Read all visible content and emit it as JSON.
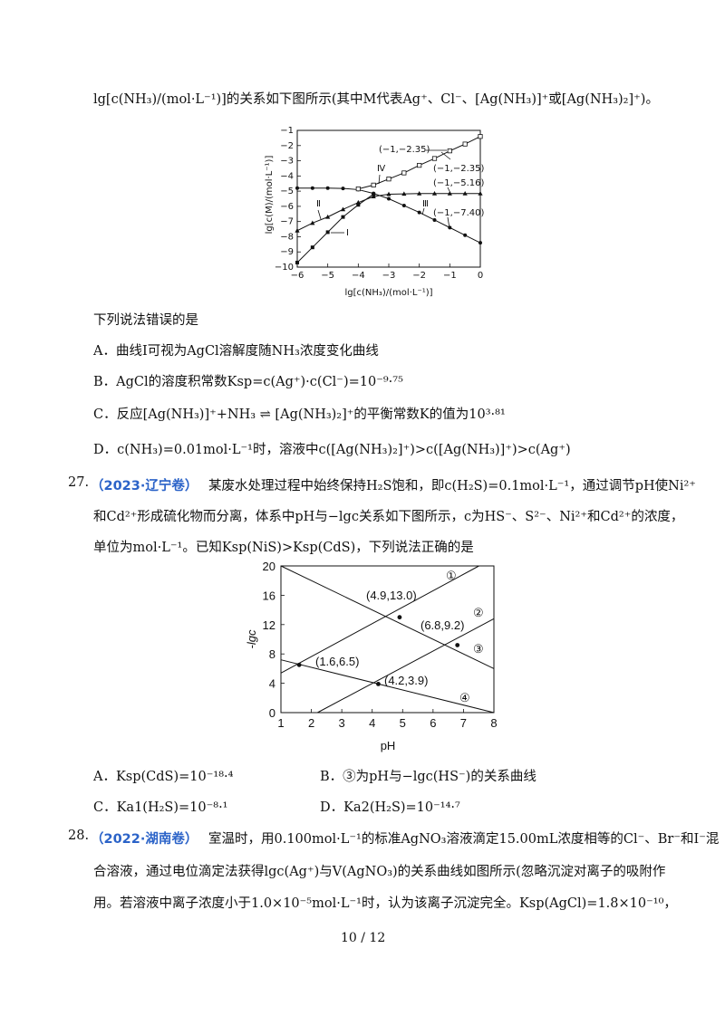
{
  "intro_line": "lg[c(NH₃)/(mol·L⁻¹)]的关系如下图所示(其中M代表Ag⁺、Cl⁻、[Ag(NH₃)]⁺或[Ag(NH₃)₂]⁺)。",
  "chart1": {
    "ylabel": "lg[c(M)/(mol·L⁻¹)]",
    "xlabel": "lg[c(NH₃)/(mol·L⁻¹)]",
    "x_ticks": [
      "−6",
      "−5",
      "−4",
      "−3",
      "−2",
      "−1",
      "0"
    ],
    "y_ticks": [
      "−1",
      "−2",
      "−3",
      "−4",
      "−5",
      "−6",
      "−7",
      "−8",
      "−9",
      "−10"
    ],
    "curve_labels": [
      "Ⅰ",
      "Ⅱ",
      "Ⅲ",
      "Ⅳ"
    ],
    "annotations": [
      "(−1,−2.35)",
      "(−1,−2.35)",
      "(−1,−5.16)",
      "(−1,−7.40)"
    ]
  },
  "chart_data": [
    {
      "type": "line",
      "xlabel": "lg[c(NH₃)/(mol·L⁻¹)]",
      "ylabel": "lg[c(M)/(mol·L⁻¹)]",
      "xlim": [
        -6,
        0
      ],
      "ylim": [
        -10,
        -1
      ],
      "series": [
        {
          "name": "Ⅰ",
          "marker": "filled-square",
          "x": [
            -6,
            -5.5,
            -5,
            -4.5,
            -4,
            -3.5
          ],
          "y": [
            -9.7,
            -8.7,
            -7.7,
            -6.7,
            -5.9,
            -5.2
          ]
        },
        {
          "name": "Ⅱ",
          "marker": "filled-triangle",
          "x": [
            -6,
            -5.5,
            -5,
            -4.5,
            -4,
            -3.5,
            -3,
            -2.5,
            -2,
            -1.5,
            -1,
            -0.5,
            0
          ],
          "y": [
            -7.6,
            -7.1,
            -6.7,
            -6.2,
            -5.75,
            -5.35,
            -5.2,
            -5.18,
            -5.16,
            -5.16,
            -5.16,
            -5.16,
            -5.16
          ]
        },
        {
          "name": "Ⅲ",
          "marker": "filled-circle",
          "x": [
            -6,
            -5.5,
            -5,
            -4.5,
            -4,
            -3.5,
            -3,
            -2.5,
            -2,
            -1.5,
            -1,
            -0.5,
            0
          ],
          "y": [
            -4.8,
            -4.8,
            -4.8,
            -4.82,
            -4.9,
            -5.15,
            -5.5,
            -5.95,
            -6.4,
            -6.9,
            -7.4,
            -7.9,
            -8.4
          ]
        },
        {
          "name": "Ⅳ",
          "marker": "open-square",
          "x": [
            -4,
            -3.5,
            -3,
            -2.5,
            -2,
            -1.5,
            -1,
            -0.5,
            0
          ],
          "y": [
            -4.85,
            -4.6,
            -4.2,
            -3.8,
            -3.3,
            -2.85,
            -2.35,
            -1.9,
            -1.4
          ]
        }
      ]
    },
    {
      "type": "line",
      "xlabel": "pH",
      "ylabel": "-lgc",
      "xlim": [
        1,
        8
      ],
      "ylim": [
        0,
        20
      ],
      "x_ticks": [
        1,
        2,
        3,
        4,
        5,
        6,
        7,
        8
      ],
      "y_ticks": [
        0,
        4,
        8,
        12,
        16,
        20
      ],
      "series": [
        {
          "name": "①",
          "x": [
            1,
            8
          ],
          "y": [
            20,
            6
          ]
        },
        {
          "name": "②",
          "x": [
            1,
            8
          ],
          "y": [
            5.4,
            21.1
          ]
        },
        {
          "name": "③",
          "x": [
            2.2,
            8
          ],
          "y": [
            0,
            12.8
          ]
        },
        {
          "name": "④",
          "x": [
            1,
            8
          ],
          "y": [
            7.2,
            0
          ]
        }
      ],
      "points": [
        {
          "x": 4.9,
          "y": 13.0,
          "label": "(4.9,13.0)"
        },
        {
          "x": 6.8,
          "y": 9.2,
          "label": "(6.8,9.2)"
        },
        {
          "x": 1.6,
          "y": 6.5,
          "label": "(1.6,6.5)"
        },
        {
          "x": 4.2,
          "y": 3.9,
          "label": "(4.2,3.9)"
        }
      ]
    }
  ],
  "q26": {
    "stem": "下列说法错误的是",
    "options": [
      "A．曲线Ⅰ可视为AgCl溶解度随NH₃浓度变化曲线",
      "B．AgCl的溶度积常数Ksp=c(Ag⁺)·c(Cl⁻)=10⁻⁹·⁷⁵",
      "C．反应[Ag(NH₃)]⁺+NH₃ ⇌ [Ag(NH₃)₂]⁺的平衡常数K的值为10³·⁸¹",
      "D．c(NH₃)=0.01mol·L⁻¹时，溶液中c([Ag(NH₃)₂]⁺)>c([Ag(NH₃)]⁺)>c(Ag⁺)"
    ]
  },
  "q27": {
    "number": "27.",
    "source": "（2023·辽宁卷）",
    "line1": "某废水处理过程中始终保持H₂S饱和，即c(H₂S)=0.1mol·L⁻¹，通过调节pH使Ni²⁺",
    "line2": "和Cd²⁺形成硫化物而分离，体系中pH与−lgc关系如下图所示，c为HS⁻、S²⁻、Ni²⁺和Cd²⁺的浓度，",
    "line3": "单位为mol·L⁻¹。已知Ksp(NiS)>Ksp(CdS)，下列说法正确的是",
    "chart_ylabel": "-lgc",
    "chart_xlabel": "pH",
    "chart_x_ticks": [
      "1",
      "2",
      "3",
      "4",
      "5",
      "6",
      "7",
      "8"
    ],
    "chart_y_ticks": [
      "0",
      "4",
      "8",
      "12",
      "16",
      "20"
    ],
    "curve_labels": [
      "①",
      "②",
      "③",
      "④"
    ],
    "point_labels": [
      "(4.9,13.0)",
      "(6.8,9.2)",
      "(1.6,6.5)",
      "(4.2,3.9)"
    ],
    "options": {
      "A": "A．Ksp(CdS)=10⁻¹⁸·⁴",
      "B": "B．③为pH与−lgc(HS⁻)的关系曲线",
      "C": "C．Ka1(H₂S)=10⁻⁸·¹",
      "D": "D．Ka2(H₂S)=10⁻¹⁴·⁷"
    }
  },
  "q28": {
    "number": "28.",
    "source": "（2022·湖南卷）",
    "line1": "室温时，用0.100mol·L⁻¹的标准AgNO₃溶液滴定15.00mL浓度相等的Cl⁻、Br⁻和I⁻混",
    "line2": "合溶液，通过电位滴定法获得lgc(Ag⁺)与V(AgNO₃)的关系曲线如图所示(忽略沉淀对离子的吸附作",
    "line3": "用。若溶液中离子浓度小于1.0×10⁻⁵mol·L⁻¹时，认为该离子沉淀完全。Ksp(AgCl)=1.8×10⁻¹⁰，"
  },
  "footer": {
    "page": "10 / 12"
  }
}
